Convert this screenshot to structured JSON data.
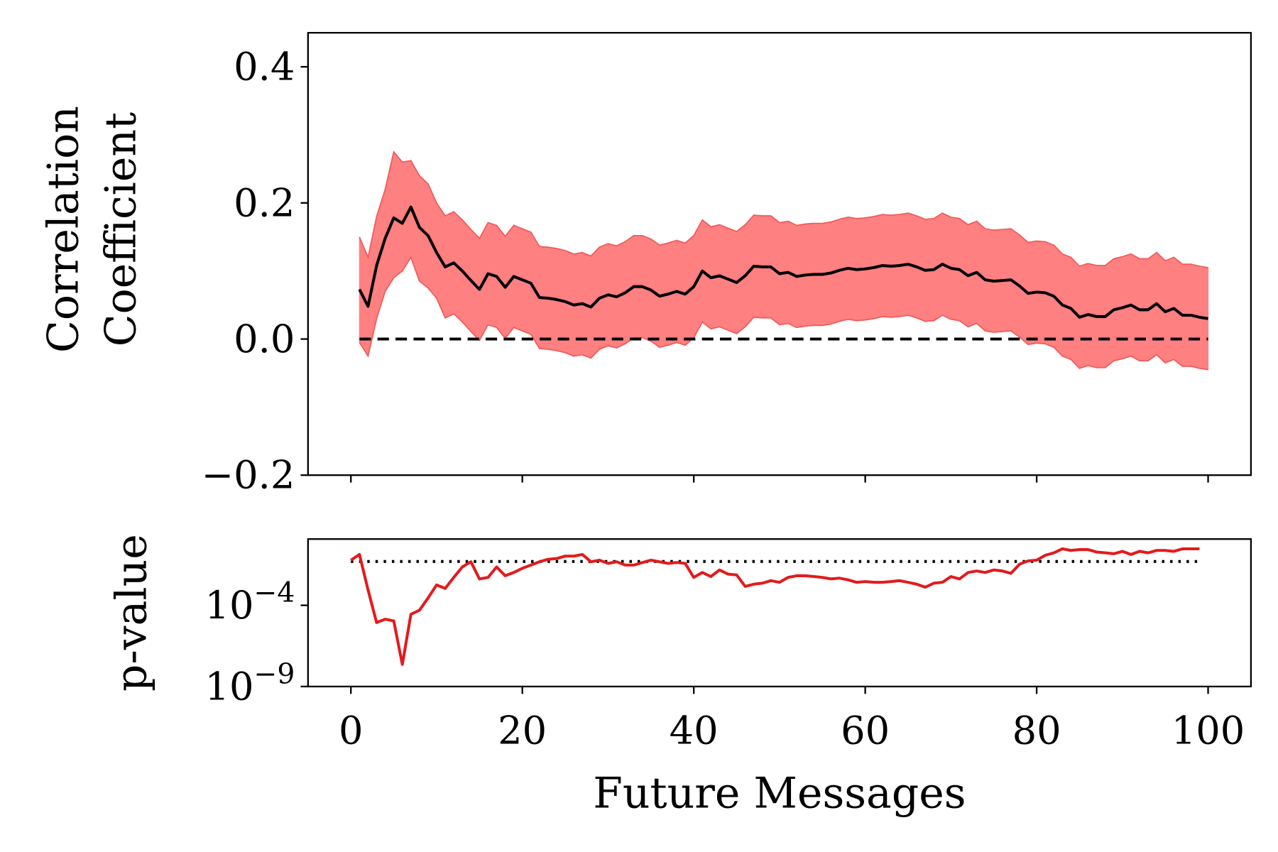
{
  "chart_data": [
    {
      "type": "line",
      "ylabel": [
        "Correlation",
        "Coefficient"
      ],
      "xlim": [
        -5,
        105
      ],
      "ylim": [
        -0.2,
        0.45
      ],
      "yticks": [
        {
          "value": -0.2,
          "label": "−0.2"
        },
        {
          "value": 0,
          "label": "0.0"
        },
        0.2,
        0.4
      ],
      "hline": 0,
      "x": [
        1,
        2,
        3,
        4,
        5,
        6,
        7,
        8,
        9,
        10,
        11,
        12,
        13,
        14,
        15,
        16,
        17,
        18,
        19,
        20,
        21,
        22,
        23,
        24,
        25,
        26,
        27,
        28,
        29,
        30,
        31,
        32,
        33,
        34,
        35,
        36,
        37,
        38,
        39,
        40,
        41,
        42,
        43,
        44,
        45,
        46,
        47,
        48,
        49,
        50,
        51,
        52,
        53,
        54,
        55,
        56,
        57,
        58,
        59,
        60,
        61,
        62,
        63,
        64,
        65,
        66,
        67,
        68,
        69,
        70,
        71,
        72,
        73,
        74,
        75,
        76,
        77,
        78,
        79,
        80,
        81,
        82,
        83,
        84,
        85,
        86,
        87,
        88,
        89,
        90,
        91,
        92,
        93,
        94,
        95,
        96,
        97,
        98,
        99,
        100
      ],
      "series": [
        {
          "color": "#000000",
          "values": [
            0.073,
            0.048,
            0.108,
            0.148,
            0.178,
            0.17,
            0.194,
            0.164,
            0.152,
            0.127,
            0.106,
            0.112,
            0.1,
            0.086,
            0.073,
            0.096,
            0.092,
            0.076,
            0.092,
            0.087,
            0.082,
            0.061,
            0.06,
            0.058,
            0.055,
            0.05,
            0.052,
            0.047,
            0.06,
            0.065,
            0.062,
            0.068,
            0.077,
            0.077,
            0.072,
            0.063,
            0.066,
            0.07,
            0.066,
            0.077,
            0.1,
            0.09,
            0.093,
            0.088,
            0.083,
            0.093,
            0.107,
            0.106,
            0.106,
            0.096,
            0.098,
            0.092,
            0.094,
            0.095,
            0.095,
            0.097,
            0.101,
            0.104,
            0.102,
            0.103,
            0.105,
            0.108,
            0.107,
            0.108,
            0.11,
            0.106,
            0.101,
            0.102,
            0.11,
            0.104,
            0.102,
            0.093,
            0.098,
            0.087,
            0.085,
            0.086,
            0.087,
            0.078,
            0.067,
            0.069,
            0.068,
            0.063,
            0.05,
            0.045,
            0.032,
            0.036,
            0.033,
            0.033,
            0.043,
            0.046,
            0.05,
            0.043,
            0.043,
            0.052,
            0.04,
            0.045,
            0.035,
            0.035,
            0.032,
            0.03
          ]
        }
      ],
      "band": {
        "color": "#ff8080",
        "edge_color": "#f05a5a",
        "upper": [
          0.15,
          0.12,
          0.18,
          0.22,
          0.275,
          0.26,
          0.262,
          0.24,
          0.228,
          0.2,
          0.181,
          0.187,
          0.175,
          0.161,
          0.148,
          0.171,
          0.167,
          0.151,
          0.167,
          0.162,
          0.157,
          0.136,
          0.135,
          0.133,
          0.13,
          0.125,
          0.127,
          0.122,
          0.135,
          0.14,
          0.137,
          0.143,
          0.152,
          0.152,
          0.147,
          0.138,
          0.141,
          0.145,
          0.141,
          0.152,
          0.175,
          0.165,
          0.168,
          0.163,
          0.158,
          0.168,
          0.182,
          0.181,
          0.181,
          0.171,
          0.173,
          0.167,
          0.169,
          0.17,
          0.17,
          0.172,
          0.176,
          0.179,
          0.177,
          0.178,
          0.18,
          0.183,
          0.182,
          0.183,
          0.185,
          0.181,
          0.176,
          0.177,
          0.185,
          0.179,
          0.177,
          0.168,
          0.173,
          0.162,
          0.16,
          0.161,
          0.162,
          0.153,
          0.142,
          0.144,
          0.143,
          0.138,
          0.125,
          0.12,
          0.107,
          0.111,
          0.108,
          0.108,
          0.118,
          0.121,
          0.125,
          0.118,
          0.118,
          0.127,
          0.115,
          0.12,
          0.11,
          0.11,
          0.107,
          0.105
        ],
        "lower": [
          -0.005,
          -0.025,
          0.03,
          0.07,
          0.09,
          0.1,
          0.12,
          0.085,
          0.075,
          0.06,
          0.031,
          0.037,
          0.025,
          0.011,
          -0.002,
          0.021,
          0.017,
          0.001,
          0.017,
          0.012,
          0.007,
          -0.014,
          -0.015,
          -0.017,
          -0.02,
          -0.025,
          -0.023,
          -0.028,
          -0.015,
          -0.01,
          -0.013,
          -0.007,
          0.002,
          0.002,
          -0.003,
          -0.012,
          -0.009,
          -0.005,
          -0.009,
          0.002,
          0.025,
          0.015,
          0.018,
          0.013,
          0.008,
          0.018,
          0.032,
          0.031,
          0.031,
          0.021,
          0.023,
          0.017,
          0.019,
          0.02,
          0.02,
          0.022,
          0.026,
          0.029,
          0.027,
          0.028,
          0.03,
          0.033,
          0.032,
          0.033,
          0.035,
          0.031,
          0.026,
          0.027,
          0.035,
          0.029,
          0.027,
          0.018,
          0.023,
          0.012,
          0.01,
          0.011,
          0.012,
          0.003,
          -0.008,
          -0.006,
          -0.007,
          -0.012,
          -0.025,
          -0.03,
          -0.043,
          -0.039,
          -0.042,
          -0.042,
          -0.032,
          -0.029,
          -0.025,
          -0.032,
          -0.032,
          -0.023,
          -0.035,
          -0.03,
          -0.04,
          -0.04,
          -0.043,
          -0.045
        ]
      }
    },
    {
      "type": "line",
      "ylabel": [
        "p-value"
      ],
      "xlabel": "Future Messages",
      "log_y": true,
      "xlim": [
        -5,
        105
      ],
      "ylim": [
        1e-09,
        1.2
      ],
      "xticks": [
        0,
        20,
        40,
        60,
        80,
        100
      ],
      "yticks": [
        {
          "value": 1e-09,
          "label": "10",
          "sup": "−9"
        },
        {
          "value": 0.0001,
          "label": "10",
          "sup": "−4"
        }
      ],
      "hline": 0.05,
      "x": [
        0,
        1,
        2,
        3,
        4,
        5,
        6,
        7,
        8,
        9,
        10,
        11,
        12,
        13,
        14,
        15,
        16,
        17,
        18,
        19,
        20,
        21,
        22,
        23,
        24,
        25,
        26,
        27,
        28,
        29,
        30,
        31,
        32,
        33,
        34,
        35,
        36,
        37,
        38,
        39,
        40,
        41,
        42,
        43,
        44,
        45,
        46,
        47,
        48,
        49,
        50,
        51,
        52,
        53,
        54,
        55,
        56,
        57,
        58,
        59,
        60,
        61,
        62,
        63,
        64,
        65,
        66,
        67,
        68,
        69,
        70,
        71,
        72,
        73,
        74,
        75,
        76,
        77,
        78,
        79,
        80,
        81,
        82,
        83,
        84,
        85,
        86,
        87,
        88,
        89,
        90,
        91,
        92,
        93,
        94,
        95,
        96,
        97,
        98,
        99
      ],
      "series": [
        {
          "color": "#e31a1c",
          "values": [
            0.06,
            0.135,
            0.0009,
            8.7e-06,
            1.4e-05,
            1.1e-05,
            2.3e-08,
            2.8e-05,
            5e-05,
            0.00028,
            0.0018,
            0.0011,
            0.0052,
            0.023,
            0.048,
            0.0042,
            0.0052,
            0.023,
            0.0066,
            0.0105,
            0.019,
            0.03,
            0.048,
            0.068,
            0.076,
            0.107,
            0.107,
            0.135,
            0.048,
            0.06,
            0.038,
            0.048,
            0.03,
            0.03,
            0.043,
            0.06,
            0.048,
            0.038,
            0.043,
            0.038,
            0.0052,
            0.0105,
            0.0059,
            0.015,
            0.0083,
            0.0074,
            0.00145,
            0.002,
            0.0023,
            0.0033,
            0.0026,
            0.0052,
            0.0066,
            0.0066,
            0.0059,
            0.0052,
            0.0042,
            0.0047,
            0.0037,
            0.0026,
            0.0029,
            0.0026,
            0.0026,
            0.0029,
            0.0033,
            0.0026,
            0.002,
            0.0013,
            0.0023,
            0.0026,
            0.0059,
            0.0042,
            0.0105,
            0.013,
            0.0105,
            0.015,
            0.013,
            0.0093,
            0.034,
            0.054,
            0.06,
            0.12,
            0.17,
            0.3,
            0.24,
            0.27,
            0.27,
            0.19,
            0.17,
            0.15,
            0.21,
            0.135,
            0.21,
            0.17,
            0.24,
            0.24,
            0.21,
            0.3,
            0.3,
            0.3
          ]
        }
      ]
    }
  ]
}
